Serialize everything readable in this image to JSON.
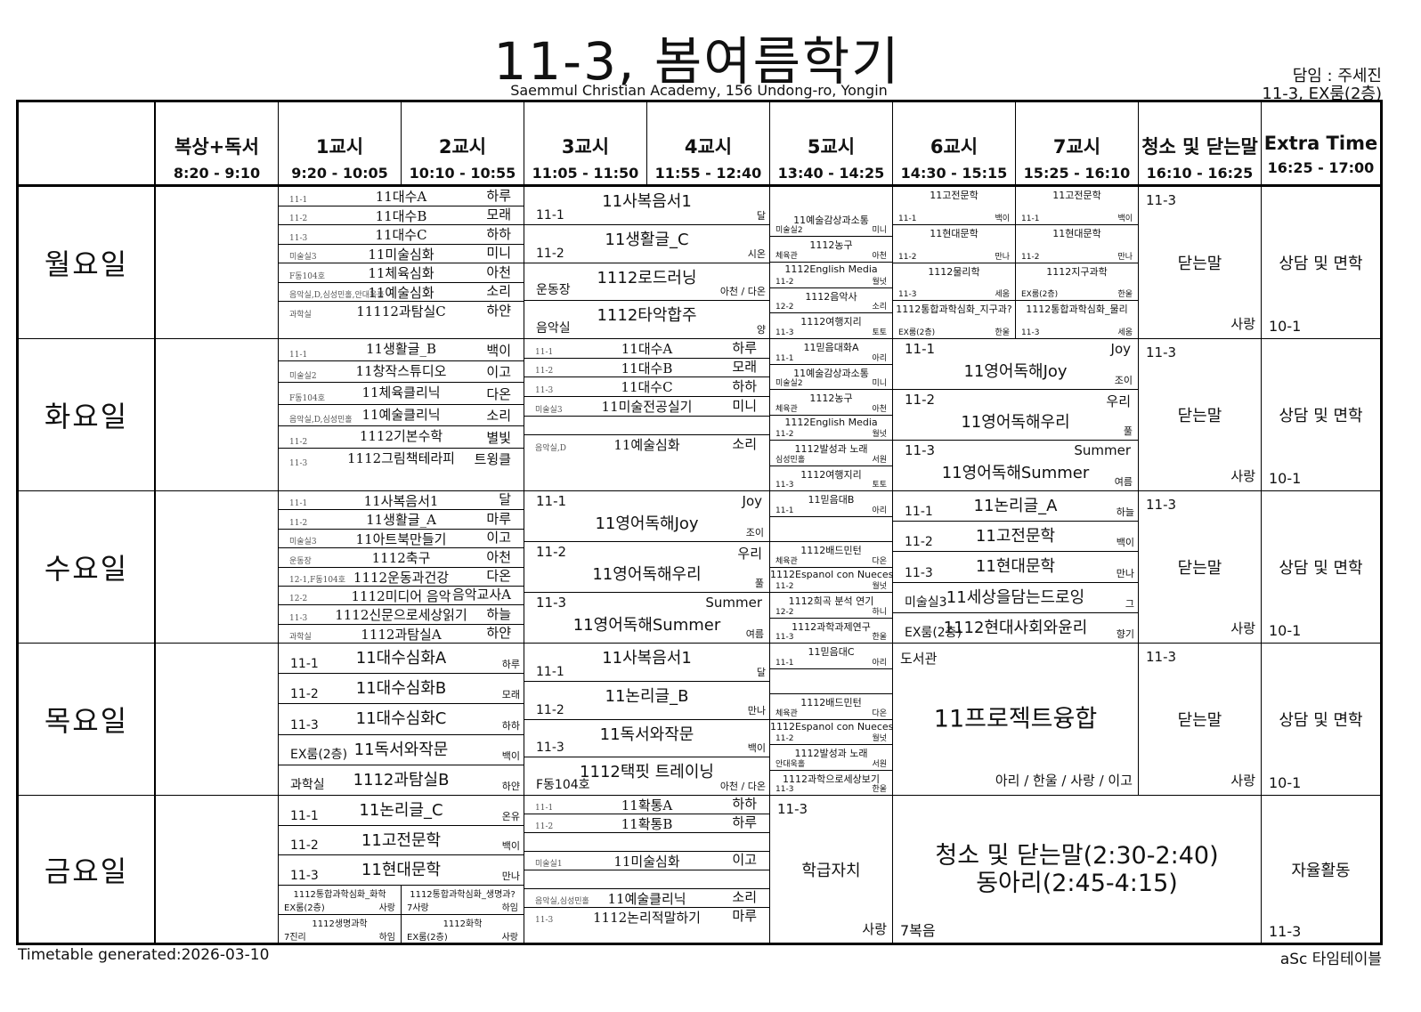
{
  "title": "11-3, 봄여름학기",
  "subtitle": "Saemmul Christian Academy, 156 Undong-ro, Yongin",
  "homeroom": "담임 : 주세진",
  "homeroom_room": "11-3, EX룸(2층)",
  "footer": {
    "generated": "Timetable generated:2026-03-10",
    "brand": "aSc 타임테이블"
  },
  "columns": [
    {
      "name": "",
      "time": ""
    },
    {
      "name": "복상+독서",
      "time": "8:20 - 9:10"
    },
    {
      "name": "1교시",
      "time": "9:20 - 10:05"
    },
    {
      "name": "2교시",
      "time": "10:10 - 10:55"
    },
    {
      "name": "3교시",
      "time": "11:05 - 11:50"
    },
    {
      "name": "4교시",
      "time": "11:55 - 12:40"
    },
    {
      "name": "5교시",
      "time": "13:40 - 14:25"
    },
    {
      "name": "6교시",
      "time": "14:30 - 15:15"
    },
    {
      "name": "7교시",
      "time": "15:25 - 16:10"
    },
    {
      "name": "청소 및 닫는말",
      "time": "16:10 - 16:25"
    },
    {
      "name": "Extra Time",
      "time": "16:25 - 17:00"
    }
  ],
  "days": [
    {
      "name": "월요일",
      "cells": [
        {
          "cols": [
            2,
            3
          ],
          "style": "serif",
          "entries": [
            {
              "left": "11-1",
              "title": "11대수A",
              "right": "하루"
            },
            {
              "left": "11-2",
              "title": "11대수B",
              "right": "모래"
            },
            {
              "left": "11-3",
              "title": "11대수C",
              "right": "하하"
            },
            {
              "left": "미술실3",
              "title": "11미술심화",
              "right": "미니"
            },
            {
              "left": "F동104호",
              "title": "11체육심화",
              "right": "아천"
            },
            {
              "left": "음악실,D,심성민홀,안대욱홀",
              "title": "11예술심화",
              "right": "소리"
            },
            {
              "left": "과학실",
              "title": "11112과탐실C",
              "right": "하얀"
            },
            {}
          ]
        },
        {
          "cols": [
            4,
            5
          ],
          "style": "big",
          "entries": [
            {
              "left": "11-1",
              "title": "11사복음서1",
              "right": "달"
            },
            {
              "left": "11-2",
              "title": "11생활글_C",
              "right": "시온"
            },
            {
              "left": "운동장",
              "title": "1112로드러닝",
              "right": "아천 / 다온"
            },
            {
              "left": "음악실",
              "title": "1112타악합주",
              "right": "양"
            }
          ]
        },
        {
          "cols": [
            6,
            6
          ],
          "style": "tiny",
          "entries": [
            {},
            {
              "left": "미술실2",
              "title": "11예술감상과소통",
              "right": "미니"
            },
            {
              "left": "체육관",
              "title": "1112농구",
              "right": "아천"
            },
            {
              "left": "11-2",
              "title": "1112English Media",
              "right": "월넛"
            },
            {
              "left": "12-2",
              "title": "1112음악사",
              "right": "소리"
            },
            {
              "left": "11-3",
              "title": "1112여행지리",
              "right": "토토"
            }
          ]
        },
        {
          "cols": [
            7,
            7
          ],
          "style": "tiny",
          "entries": [
            {
              "left": "11-1",
              "title": "11고전문학",
              "right": "백이"
            },
            {
              "left": "11-2",
              "title": "11현대문학",
              "right": "만나"
            },
            {
              "left": "11-3",
              "title": "1112물리학",
              "right": "세움"
            },
            {
              "left": "EX룸(2층)",
              "title": "1112통합과학심화_지구과?",
              "right": "한울"
            }
          ]
        },
        {
          "cols": [
            8,
            8
          ],
          "style": "tiny",
          "entries": [
            {
              "left": "11-1",
              "title": "11고전문학",
              "right": "백이"
            },
            {
              "left": "11-2",
              "title": "11현대문학",
              "right": "만나"
            },
            {
              "left": "EX룸(2층)",
              "title": "1112지구과학",
              "right": "한울"
            },
            {
              "left": "11-3",
              "title": "1112통합과학심화_물리",
              "right": "세움"
            }
          ]
        },
        {
          "cols": [
            9,
            9
          ],
          "style": "block",
          "top_left": "11-3",
          "center": "닫는말",
          "bottom_right": "사랑"
        },
        {
          "cols": [
            10,
            10
          ],
          "style": "block",
          "center": "상담 및 면학",
          "bottom_left": "10-1"
        }
      ]
    },
    {
      "name": "화요일",
      "cells": [
        {
          "cols": [
            2,
            3
          ],
          "style": "serif",
          "entries": [
            {
              "left": "11-1",
              "title": "11생활글_B",
              "right": "백이"
            },
            {
              "left": "미술실2",
              "title": "11창작스튜디오",
              "right": "이고"
            },
            {
              "left": "F동104호",
              "title": "11체육클리닉",
              "right": "다온"
            },
            {
              "left": "음악실,D,심성민홀",
              "title": "11예술클리닉",
              "right": "소리"
            },
            {
              "left": "11-2",
              "title": "1112기본수학",
              "right": "별빛"
            },
            {
              "left": "11-3",
              "title": "1112그림책테라피",
              "right": "트윙클"
            },
            {}
          ]
        },
        {
          "cols": [
            4,
            5
          ],
          "style": "serif",
          "entries": [
            {
              "left": "11-1",
              "title": "11대수A",
              "right": "하루"
            },
            {
              "left": "11-2",
              "title": "11대수B",
              "right": "모래"
            },
            {
              "left": "11-3",
              "title": "11대수C",
              "right": "하하"
            },
            {
              "left": "미술실3",
              "title": "11미술전공실기",
              "right": "미니"
            },
            {
              "left": "",
              "title": "",
              "right": ""
            },
            {
              "left": "음악실,D",
              "title": "11예술심화",
              "right": "소리"
            },
            {},
            {}
          ]
        },
        {
          "cols": [
            6,
            6
          ],
          "style": "tiny",
          "entries": [
            {
              "left": "11-1",
              "title": "11믿음대화A",
              "right": "아리"
            },
            {
              "left": "미술실2",
              "title": "11예술감상과소통",
              "right": "미니"
            },
            {
              "left": "체육관",
              "title": "1112농구",
              "right": "아천"
            },
            {
              "left": "11-2",
              "title": "1112English Media",
              "right": "월넛"
            },
            {
              "left": "심성민홀",
              "title": "1112발성과 노래",
              "right": "서원"
            },
            {
              "left": "11-3",
              "title": "1112여행지리",
              "right": "토토"
            }
          ]
        },
        {
          "cols": [
            7,
            8
          ],
          "style": "eng",
          "entries": [
            {
              "left": "11-1",
              "top_right": "Joy",
              "title": "11영어독해Joy",
              "right": "조이"
            },
            {
              "left": "11-2",
              "top_right": "우리",
              "title": "11영어독해우리",
              "right": "풀"
            },
            {
              "left": "11-3",
              "top_right": "Summer",
              "title": "11영어독해Summer",
              "right": "여름"
            }
          ]
        },
        {
          "cols": [
            9,
            9
          ],
          "style": "block",
          "top_left": "11-3",
          "center": "닫는말",
          "bottom_right": "사랑"
        },
        {
          "cols": [
            10,
            10
          ],
          "style": "block",
          "center": "상담 및 면학",
          "bottom_left": "10-1"
        }
      ]
    },
    {
      "name": "수요일",
      "cells": [
        {
          "cols": [
            2,
            3
          ],
          "style": "serif",
          "entries": [
            {
              "left": "11-1",
              "title": "11사복음서1",
              "right": "달"
            },
            {
              "left": "11-2",
              "title": "11생활글_A",
              "right": "마루"
            },
            {
              "left": "미술실3",
              "title": "11아트북만들기",
              "right": "이고"
            },
            {
              "left": "운동장",
              "title": "1112축구",
              "right": "아천"
            },
            {
              "left": "12-1,F동104호",
              "title": "1112운동과건강",
              "right": "다온"
            },
            {
              "left": "12-2",
              "title": "1112미디어 음악",
              "right": "음악교사A"
            },
            {
              "left": "11-3",
              "title": "1112신문으로세상읽기",
              "right": "하늘"
            },
            {
              "left": "과학실",
              "title": "1112과탐실A",
              "right": "하얀"
            }
          ]
        },
        {
          "cols": [
            4,
            5
          ],
          "style": "eng",
          "entries": [
            {
              "left": "11-1",
              "top_right": "Joy",
              "title": "11영어독해Joy",
              "right": "조이"
            },
            {
              "left": "11-2",
              "top_right": "우리",
              "title": "11영어독해우리",
              "right": "풀"
            },
            {
              "left": "11-3",
              "top_right": "Summer",
              "title": "11영어독해Summer",
              "right": "여름"
            }
          ]
        },
        {
          "cols": [
            6,
            6
          ],
          "style": "tiny",
          "entries": [
            {
              "left": "11-1",
              "title": "11믿음대B",
              "right": "아리"
            },
            {
              "left": "",
              "title": "",
              "right": ""
            },
            {
              "left": "체육관",
              "title": "1112배드민턴",
              "right": "다온"
            },
            {
              "left": "11-2",
              "title": "1112Espanol con Nueces",
              "right": "월넛"
            },
            {
              "left": "12-2",
              "title": "1112희곡 분석  연기",
              "right": "하니"
            },
            {
              "left": "11-3",
              "title": "1112과학과제연구",
              "right": "한울"
            }
          ]
        },
        {
          "cols": [
            7,
            8
          ],
          "style": "big",
          "entries": [
            {
              "left": "11-1",
              "title": "11논리글_A",
              "right": "하늘"
            },
            {
              "left": "11-2",
              "title": "11고전문학",
              "right": "백이"
            },
            {
              "left": "11-3",
              "title": "11현대문학",
              "right": "만나"
            },
            {
              "left": "미술실3",
              "title": "11세상을담는드로잉",
              "right": "그"
            },
            {
              "left": "EX룸(2층)",
              "title": "1112현대사회와윤리",
              "right": "향기"
            }
          ]
        },
        {
          "cols": [
            9,
            9
          ],
          "style": "block",
          "top_left": "11-3",
          "center": "닫는말",
          "bottom_right": "사랑"
        },
        {
          "cols": [
            10,
            10
          ],
          "style": "block",
          "center": "상담 및 면학",
          "bottom_left": "10-1"
        }
      ]
    },
    {
      "name": "목요일",
      "cells": [
        {
          "cols": [
            2,
            3
          ],
          "style": "big",
          "entries": [
            {
              "left": "11-1",
              "title": "11대수심화A",
              "right": "하루"
            },
            {
              "left": "11-2",
              "title": "11대수심화B",
              "right": "모래"
            },
            {
              "left": "11-3",
              "title": "11대수심화C",
              "right": "하하"
            },
            {
              "left": "EX룸(2층)",
              "title": "11독서와작문",
              "right": "백이"
            },
            {
              "left": "과학실",
              "title": "1112과탐실B",
              "right": "하얀"
            }
          ]
        },
        {
          "cols": [
            4,
            5
          ],
          "style": "big",
          "entries": [
            {
              "left": "11-1",
              "title": "11사복음서1",
              "right": "달"
            },
            {
              "left": "11-2",
              "title": "11논리글_B",
              "right": "만나"
            },
            {
              "left": "11-3",
              "title": "11독서와작문",
              "right": "백이"
            },
            {
              "left": "F동104호",
              "title": "1112택핏 트레이닝",
              "right": "아천 / 다온"
            }
          ]
        },
        {
          "cols": [
            6,
            6
          ],
          "style": "tiny",
          "entries": [
            {
              "left": "11-1",
              "title": "11믿음대C",
              "right": "아리"
            },
            {
              "left": "",
              "title": "",
              "right": ""
            },
            {
              "left": "체육관",
              "title": "1112배드민턴",
              "right": "다온"
            },
            {
              "left": "11-2",
              "title": "1112Espanol con Nueces",
              "right": "월넛"
            },
            {
              "left": "안대욱홀",
              "title": "1112발성과 노래",
              "right": "서원"
            },
            {
              "left": "11-3",
              "title": "1112과학으로세상보기",
              "right": "한울"
            }
          ]
        },
        {
          "cols": [
            7,
            8
          ],
          "style": "block",
          "top_left": "도서관",
          "center": "11프로젝트융합",
          "bottom_right": "아리 / 한울 / 사랑 / 이고",
          "center_size": "large"
        },
        {
          "cols": [
            9,
            9
          ],
          "style": "block",
          "top_left": "11-3",
          "center": "닫는말",
          "bottom_right": "사랑"
        },
        {
          "cols": [
            10,
            10
          ],
          "style": "block",
          "center": "상담 및 면학",
          "bottom_left": "10-1"
        }
      ]
    },
    {
      "name": "금요일",
      "cells": [
        {
          "cols": [
            2,
            3
          ],
          "style": "big",
          "entries": [
            {
              "left": "11-1",
              "title": "11논리글_C",
              "right": "온유"
            },
            {
              "left": "11-2",
              "title": "11고전문학",
              "right": "백이"
            },
            {
              "left": "11-3",
              "title": "11현대문학",
              "right": "만나"
            },
            {
              "split": [
                [
                  {
                    "left": "EX룸(2층)",
                    "title": "1112통합과학심화_화학",
                    "right": "사랑"
                  },
                  {
                    "left": "7진리",
                    "title": "1112생명과학",
                    "right": "하임"
                  }
                ],
                [
                  {
                    "left": "7사랑",
                    "title": "1112통합과학심화_생명과?",
                    "right": "하임"
                  },
                  {
                    "left": "EX룸(2층)",
                    "title": "1112화학",
                    "right": "사랑"
                  }
                ]
              ]
            }
          ]
        },
        {
          "cols": [
            4,
            5
          ],
          "style": "serif",
          "entries": [
            {
              "left": "11-1",
              "title": "11확통A",
              "right": "하하"
            },
            {
              "left": "11-2",
              "title": "11확통B",
              "right": "하루"
            },
            {
              "left": "",
              "title": "",
              "right": ""
            },
            {
              "left": "미술실1",
              "title": "11미술심화",
              "right": "이고"
            },
            {
              "left": "",
              "title": "",
              "right": ""
            },
            {
              "left": "음악실,심성민홀",
              "title": "11예술클리닉",
              "right": "소리"
            },
            {
              "left": "11-3",
              "title": "1112논리적말하기",
              "right": "마루"
            },
            {}
          ]
        },
        {
          "cols": [
            6,
            6
          ],
          "style": "block",
          "top_left": "11-3",
          "center": "학급자치",
          "bottom_right": "사랑"
        },
        {
          "cols": [
            7,
            9
          ],
          "style": "block",
          "center": "청소 및 닫는말(2:30-2:40)\n동아리(2:45-4:15)",
          "bottom_left": "7복음",
          "center_size": "large"
        },
        {
          "cols": [
            10,
            10
          ],
          "style": "block",
          "center": "자율활동",
          "bottom_left": "11-3"
        }
      ]
    }
  ]
}
